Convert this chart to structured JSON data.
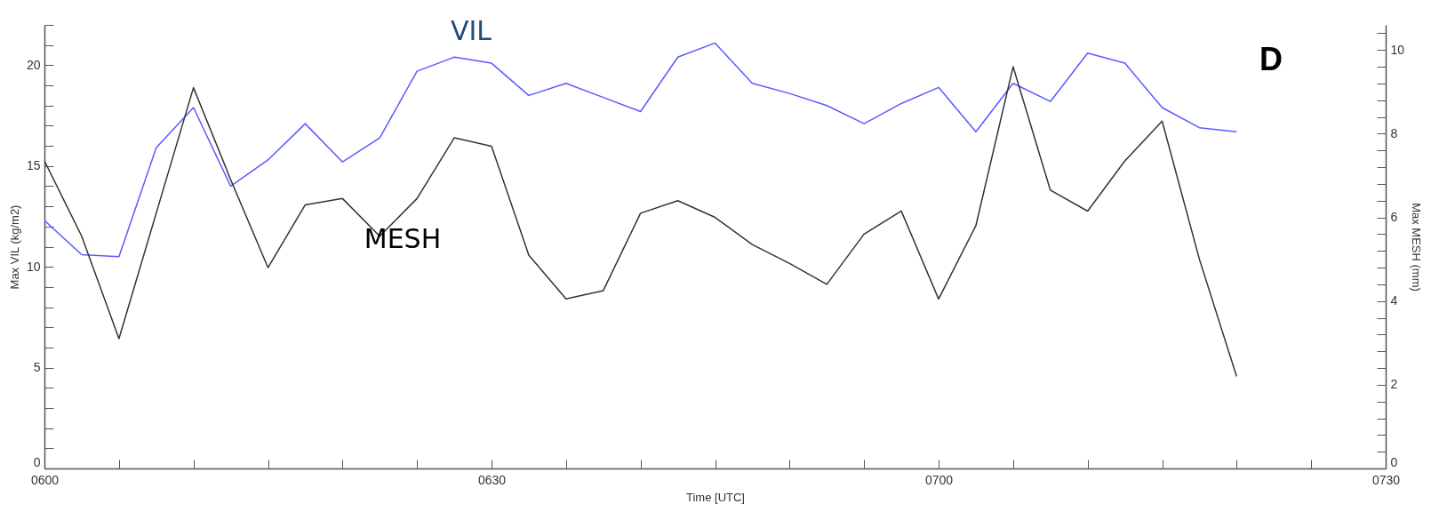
{
  "chart_data": {
    "type": "line",
    "xlabel": "Time [UTC]",
    "ylabel": "Max VIL (kg/m2)",
    "y2label": "Max MESH (mm)",
    "annotations": [
      "D"
    ],
    "categories": [
      "0600",
      null,
      null,
      null,
      null,
      null,
      null,
      null,
      null,
      null,
      null,
      null,
      "0630",
      null,
      null,
      null,
      null,
      null,
      null,
      null,
      null,
      null,
      null,
      null,
      "0700",
      null,
      null,
      null,
      null,
      null,
      null,
      null,
      null,
      null,
      null,
      null,
      "0730"
    ],
    "series": [
      {
        "name": "VIL",
        "color": "#5a5aff",
        "values": [
          12.3,
          10.6,
          10.5,
          15.9,
          17.9,
          14.0,
          15.3,
          17.1,
          15.2,
          16.4,
          19.7,
          20.4,
          20.1,
          18.5,
          19.1,
          18.4,
          17.7,
          20.4,
          21.1,
          19.1,
          18.6,
          18.0,
          17.1,
          18.1,
          18.9,
          16.7,
          19.1,
          18.2,
          20.6,
          20.1,
          17.9,
          16.9,
          16.7,
          null,
          null,
          null,
          null
        ]
      },
      {
        "name": "MESH",
        "color": "#333333",
        "axis": "y2",
        "values": [
          7.35,
          5.55,
          3.1,
          6.1,
          9.1,
          6.9,
          4.8,
          6.3,
          6.45,
          5.55,
          6.45,
          7.9,
          7.7,
          5.1,
          4.05,
          4.25,
          6.1,
          6.4,
          6.0,
          5.35,
          4.9,
          4.4,
          5.6,
          6.15,
          4.05,
          5.8,
          9.6,
          6.65,
          6.15,
          7.35,
          8.3,
          5.0,
          2.2,
          null,
          null,
          null,
          null
        ]
      }
    ],
    "ylim": [
      0,
      22
    ],
    "yticks": [
      0,
      {
        "value": 1,
        "label": null
      },
      {
        "value": 2,
        "label": null
      },
      {
        "value": 3,
        "label": null
      },
      {
        "value": 4,
        "label": null
      },
      5,
      {
        "value": 6,
        "label": null
      },
      {
        "value": 7,
        "label": null
      },
      {
        "value": 8,
        "label": null
      },
      {
        "value": 9,
        "label": null
      },
      10,
      {
        "value": 11,
        "label": null
      },
      {
        "value": 12,
        "label": null
      },
      {
        "value": 13,
        "label": null
      },
      {
        "value": 14,
        "label": null
      },
      15,
      {
        "value": 16,
        "label": null
      },
      {
        "value": 17,
        "label": null
      },
      {
        "value": 18,
        "label": null
      },
      {
        "value": 19,
        "label": null
      },
      20,
      {
        "value": 21,
        "label": null
      },
      {
        "value": 22,
        "label": null
      }
    ],
    "y2lim": [
      0,
      10.6
    ],
    "y2ticks": [
      0,
      {
        "value": 0.4,
        "label": null
      },
      {
        "value": 0.8,
        "label": null
      },
      {
        "value": 1.2,
        "label": null
      },
      {
        "value": 1.6,
        "label": null
      },
      2,
      {
        "value": 2.4,
        "label": null
      },
      {
        "value": 2.8,
        "label": null
      },
      {
        "value": 3.2,
        "label": null
      },
      {
        "value": 3.6,
        "label": null
      },
      4,
      {
        "value": 4.4,
        "label": null
      },
      {
        "value": 4.8,
        "label": null
      },
      {
        "value": 5.2,
        "label": null
      },
      {
        "value": 5.6,
        "label": null
      },
      6,
      {
        "value": 6.4,
        "label": null
      },
      {
        "value": 6.8,
        "label": null
      },
      {
        "value": 7.2,
        "label": null
      },
      {
        "value": 7.6,
        "label": null
      },
      8,
      {
        "value": 8.4,
        "label": null
      },
      {
        "value": 8.8,
        "label": null
      },
      {
        "value": 9.2,
        "label": null
      },
      {
        "value": 9.6,
        "label": null
      },
      10,
      {
        "value": 10.4,
        "label": null
      }
    ],
    "grid": false,
    "legend": false,
    "marker": "none",
    "line_style": "solid"
  }
}
